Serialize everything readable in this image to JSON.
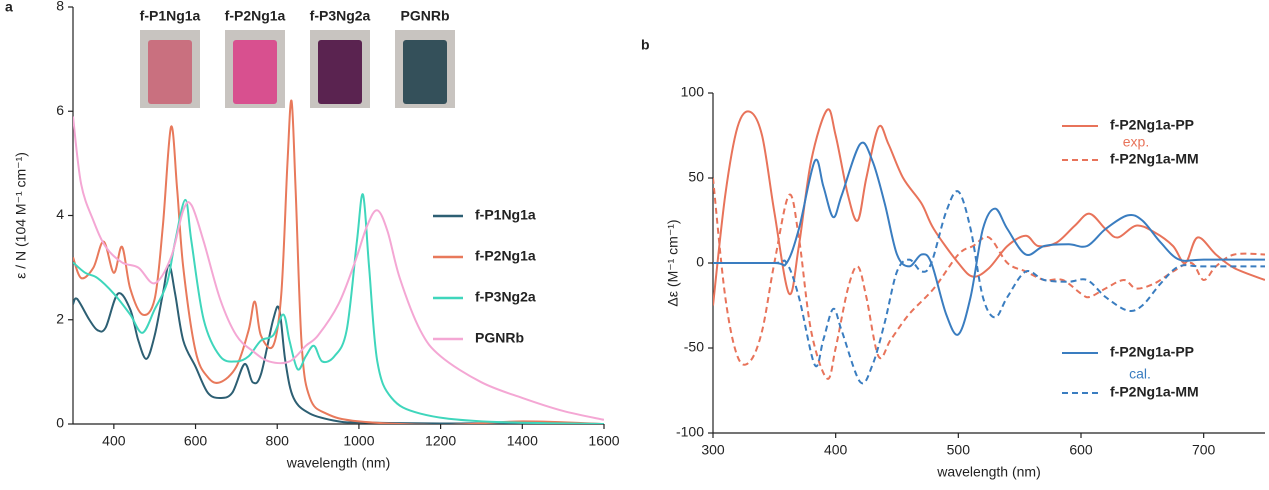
{
  "chart_data": [
    {
      "type": "line",
      "panel_label": "a",
      "xlabel": "wavelength (nm)",
      "ylabel": "ε / N (104 M⁻¹ cm⁻¹)",
      "xlim": [
        300,
        1600
      ],
      "ylim": [
        0,
        8
      ],
      "xticks": [
        400,
        600,
        800,
        1000,
        1200,
        1400,
        1600
      ],
      "yticks": [
        0,
        2,
        4,
        6,
        8
      ],
      "vials": [
        {
          "label": "f-P1Ng1a",
          "color": "#c9707f"
        },
        {
          "label": "f-P2Ng1a",
          "color": "#d8508f"
        },
        {
          "label": "f-P3Ng2a",
          "color": "#5a2350"
        },
        {
          "label": "PGNRb",
          "color": "#34505a"
        }
      ],
      "series": [
        {
          "name": "f-P1Ng1a",
          "color": "#2d5f73",
          "dash": false,
          "x": [
            300,
            310,
            340,
            360,
            380,
            410,
            440,
            460,
            480,
            500,
            520,
            535,
            550,
            570,
            600,
            630,
            660,
            690,
            720,
            740,
            760,
            790,
            805,
            820,
            840,
            880,
            950,
            1000,
            1200,
            1400,
            1600
          ],
          "values": [
            2.3,
            2.4,
            2.0,
            1.8,
            1.85,
            2.5,
            2.2,
            1.6,
            1.25,
            1.7,
            2.5,
            3.05,
            2.5,
            1.6,
            1.1,
            0.6,
            0.5,
            0.6,
            1.15,
            0.8,
            0.95,
            2.0,
            2.2,
            1.2,
            0.5,
            0.2,
            0.05,
            0.03,
            0.01,
            0.02,
            0.0
          ]
        },
        {
          "name": "f-P2Ng1a",
          "color": "#e8795b",
          "dash": false,
          "x": [
            300,
            320,
            350,
            375,
            400,
            420,
            440,
            470,
            500,
            520,
            540,
            555,
            570,
            600,
            630,
            660,
            700,
            730,
            745,
            760,
            790,
            810,
            825,
            835,
            845,
            860,
            880,
            920,
            1000,
            1200,
            1400,
            1600
          ],
          "values": [
            3.2,
            2.8,
            3.0,
            3.5,
            2.9,
            3.4,
            2.6,
            2.1,
            2.4,
            3.8,
            5.7,
            4.5,
            3.0,
            1.4,
            0.9,
            0.8,
            1.1,
            1.8,
            2.35,
            1.7,
            1.5,
            2.5,
            5.0,
            6.2,
            4.5,
            1.5,
            0.5,
            0.2,
            0.05,
            -0.02,
            0.05,
            0.0
          ]
        },
        {
          "name": "f-P3Ng2a",
          "color": "#3fd6bc",
          "dash": false,
          "x": [
            300,
            330,
            360,
            400,
            440,
            470,
            500,
            530,
            550,
            575,
            590,
            620,
            660,
            700,
            730,
            760,
            790,
            815,
            830,
            850,
            870,
            890,
            910,
            940,
            970,
            995,
            1010,
            1025,
            1045,
            1080,
            1150,
            1300,
            1600
          ],
          "values": [
            3.1,
            2.9,
            2.8,
            2.5,
            2.1,
            1.75,
            2.2,
            2.7,
            3.5,
            4.3,
            3.5,
            2.0,
            1.3,
            1.2,
            1.3,
            1.6,
            1.7,
            2.1,
            1.6,
            1.05,
            1.3,
            1.5,
            1.2,
            1.3,
            1.8,
            3.5,
            4.4,
            3.0,
            1.2,
            0.5,
            0.2,
            0.05,
            0.0
          ]
        },
        {
          "name": "PGNRb",
          "color": "#f4a7d4",
          "dash": false,
          "x": [
            300,
            320,
            350,
            380,
            420,
            460,
            500,
            540,
            570,
            590,
            620,
            660,
            700,
            740,
            780,
            830,
            870,
            900,
            950,
            990,
            1020,
            1045,
            1070,
            1100,
            1150,
            1200,
            1300,
            1400,
            1500,
            1600
          ],
          "values": [
            5.9,
            4.6,
            3.9,
            3.4,
            3.1,
            3.0,
            2.7,
            3.2,
            4.1,
            4.2,
            3.5,
            2.4,
            1.7,
            1.4,
            1.2,
            1.2,
            1.5,
            1.7,
            2.3,
            3.1,
            3.8,
            4.1,
            3.7,
            2.8,
            1.8,
            1.3,
            0.8,
            0.5,
            0.25,
            0.08
          ]
        }
      ]
    },
    {
      "type": "line",
      "panel_label": "b",
      "xlabel": "wavelength (nm)",
      "ylabel": "Δε (M⁻¹ cm⁻¹)",
      "xlim": [
        300,
        750
      ],
      "ylim": [
        -100,
        100
      ],
      "xticks": [
        300,
        400,
        500,
        600,
        700
      ],
      "yticks": [
        -100,
        -50,
        0,
        50,
        100
      ],
      "annotations": [
        "exp.",
        "cal."
      ],
      "series": [
        {
          "name": "f-P2Ng1a-PP",
          "color": "#e8735a",
          "dash": false,
          "x": [
            300,
            310,
            320,
            330,
            340,
            350,
            362,
            370,
            380,
            393,
            400,
            410,
            418,
            425,
            435,
            443,
            455,
            470,
            480,
            500,
            512,
            525,
            540,
            555,
            565,
            580,
            595,
            607,
            620,
            630,
            645,
            660,
            675,
            685,
            695,
            710,
            725,
            750
          ],
          "values": [
            -25,
            40,
            80,
            89,
            75,
            30,
            -18,
            10,
            60,
            90,
            75,
            40,
            25,
            50,
            80,
            70,
            50,
            35,
            20,
            0,
            -8,
            -3,
            10,
            16,
            10,
            12,
            22,
            29,
            20,
            15,
            22,
            18,
            10,
            0,
            15,
            5,
            -3,
            -10
          ]
        },
        {
          "name": "f-P2Ng1a-MM",
          "color": "#e8735a",
          "dash": true,
          "x": [
            300,
            310,
            320,
            330,
            340,
            350,
            362,
            370,
            380,
            393,
            400,
            410,
            418,
            425,
            435,
            445,
            460,
            480,
            500,
            512,
            525,
            540,
            555,
            570,
            585,
            600,
            607,
            620,
            635,
            645,
            660,
            675,
            690,
            700,
            710,
            725,
            750
          ],
          "values": [
            50,
            -20,
            -55,
            -58,
            -40,
            0,
            40,
            15,
            -40,
            -68,
            -50,
            -15,
            -2,
            -20,
            -55,
            -45,
            -30,
            -15,
            5,
            10,
            15,
            0,
            -5,
            -10,
            -10,
            -18,
            -20,
            -15,
            -10,
            -15,
            -12,
            -5,
            0,
            -10,
            -2,
            5,
            5
          ]
        },
        {
          "name": "f-P2Ng1a-PP",
          "color": "#3a7dc0",
          "dash": false,
          "x": [
            300,
            350,
            360,
            370,
            383,
            390,
            398,
            405,
            420,
            430,
            440,
            450,
            460,
            470,
            478,
            490,
            500,
            510,
            520,
            530,
            540,
            555,
            570,
            590,
            605,
            620,
            638,
            650,
            665,
            680,
            700,
            750
          ],
          "values": [
            0,
            0,
            0,
            20,
            60,
            45,
            27,
            40,
            70,
            60,
            35,
            5,
            -2,
            5,
            0,
            -30,
            -42,
            -20,
            20,
            32,
            20,
            5,
            10,
            11,
            10,
            20,
            28,
            25,
            12,
            2,
            2,
            2
          ]
        },
        {
          "name": "f-P2Ng1a-MM",
          "color": "#3a7dc0",
          "dash": true,
          "x": [
            300,
            350,
            360,
            370,
            383,
            390,
            398,
            405,
            420,
            430,
            440,
            450,
            460,
            470,
            478,
            490,
            500,
            510,
            520,
            530,
            540,
            555,
            570,
            590,
            605,
            620,
            638,
            650,
            665,
            680,
            700,
            750
          ],
          "values": [
            0,
            0,
            0,
            -20,
            -60,
            -45,
            -27,
            -40,
            -70,
            -60,
            -35,
            -5,
            2,
            -5,
            0,
            30,
            42,
            20,
            -20,
            -32,
            -20,
            -5,
            -10,
            -11,
            -10,
            -20,
            -28,
            -25,
            -12,
            -2,
            -2,
            -2
          ]
        }
      ]
    }
  ]
}
